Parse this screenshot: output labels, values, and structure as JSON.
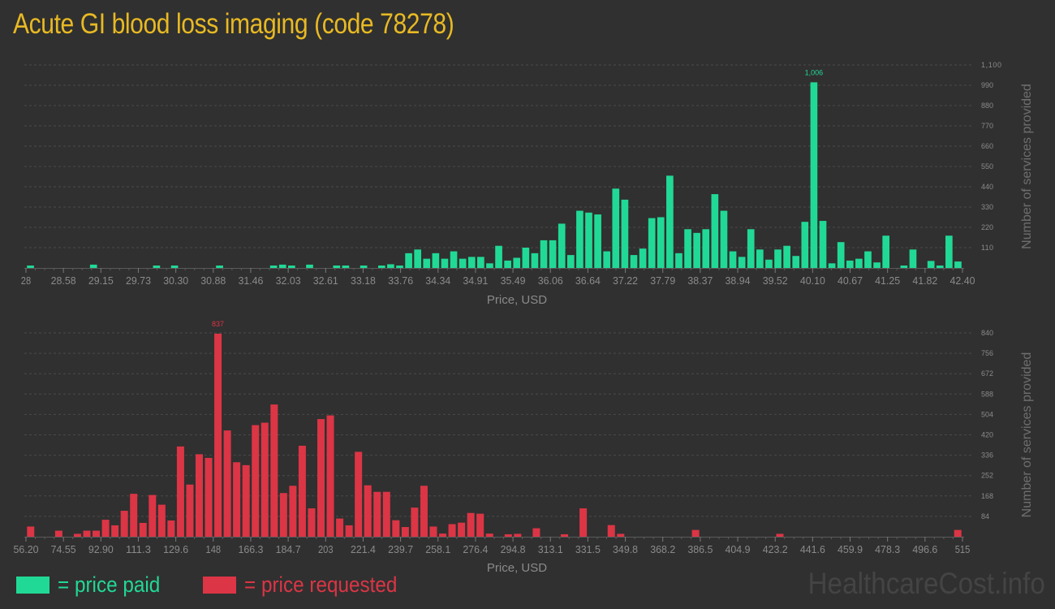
{
  "title": "Acute GI blood loss imaging (code 78278)",
  "colors": {
    "paid": "#21d996",
    "requested": "#dc3545",
    "title": "#e8b923",
    "background": "#303030"
  },
  "legend": {
    "paid_label": "= price paid",
    "requested_label": "= price requested"
  },
  "watermark": "HealthcareCost.info",
  "chart_data": [
    {
      "type": "bar",
      "title": "Price paid",
      "xlabel": "Price, USD",
      "ylabel": "Number of services provided",
      "ylim": [
        0,
        1100
      ],
      "yticks": [
        110,
        220,
        330,
        440,
        550,
        660,
        770,
        880,
        990,
        1100
      ],
      "ytick_labels": [
        "110",
        "220",
        "330",
        "440",
        "550",
        "660",
        "770",
        "880",
        "990",
        "1,100"
      ],
      "xtick_labels": [
        "28",
        "28.58",
        "29.15",
        "29.73",
        "30.30",
        "30.88",
        "31.46",
        "32.03",
        "32.61",
        "33.18",
        "33.76",
        "34.34",
        "34.91",
        "35.49",
        "36.06",
        "36.64",
        "37.22",
        "37.79",
        "38.37",
        "38.94",
        "39.52",
        "40.10",
        "40.67",
        "41.25",
        "41.82",
        "42.40"
      ],
      "grid": true,
      "peak_label": "1,006",
      "color": "#21d996",
      "values": [
        12,
        0,
        0,
        0,
        0,
        0,
        0,
        18,
        0,
        0,
        0,
        0,
        0,
        0,
        10,
        0,
        10,
        0,
        0,
        0,
        0,
        10,
        0,
        0,
        0,
        0,
        0,
        10,
        18,
        10,
        0,
        18,
        0,
        0,
        10,
        8,
        0,
        10,
        0,
        10,
        20,
        8,
        80,
        100,
        50,
        80,
        50,
        90,
        50,
        60,
        60,
        25,
        120,
        40,
        55,
        110,
        80,
        150,
        150,
        240,
        70,
        310,
        300,
        290,
        90,
        430,
        370,
        70,
        105,
        270,
        275,
        500,
        80,
        210,
        190,
        210,
        400,
        310,
        90,
        60,
        210,
        100,
        45,
        100,
        120,
        65,
        250,
        1006,
        255,
        25,
        140,
        40,
        50,
        90,
        30,
        175,
        0,
        8,
        100,
        0,
        38,
        10,
        175,
        35
      ],
      "x_range": [
        28,
        42.4
      ]
    },
    {
      "type": "bar",
      "title": "Price requested",
      "xlabel": "Price, USD",
      "ylabel": "Number of services provided",
      "ylim": [
        0,
        840
      ],
      "yticks": [
        84,
        168,
        252,
        336,
        420,
        504,
        588,
        672,
        756,
        840
      ],
      "ytick_labels": [
        "84",
        "168",
        "252",
        "336",
        "420",
        "504",
        "588",
        "672",
        "756",
        "840"
      ],
      "xtick_labels": [
        "56.20",
        "74.55",
        "92.90",
        "111.3",
        "129.6",
        "148",
        "166.3",
        "184.7",
        "203",
        "221.4",
        "239.7",
        "258.1",
        "276.4",
        "294.8",
        "313.1",
        "331.5",
        "349.8",
        "368.2",
        "386.5",
        "404.9",
        "423.2",
        "441.6",
        "459.9",
        "478.3",
        "496.6",
        "515"
      ],
      "grid": true,
      "peak_label": "837",
      "color": "#dc3545",
      "values": [
        42,
        0,
        0,
        25,
        0,
        12,
        25,
        25,
        70,
        47,
        107,
        177,
        57,
        172,
        132,
        67,
        372,
        215,
        340,
        325,
        837,
        438,
        307,
        295,
        460,
        470,
        545,
        180,
        210,
        375,
        117,
        485,
        500,
        75,
        47,
        350,
        212,
        185,
        185,
        68,
        40,
        120,
        210,
        42,
        13,
        52,
        58,
        98,
        95,
        13,
        0,
        8,
        12,
        0,
        35,
        0,
        0,
        8,
        0,
        117,
        0,
        0,
        48,
        12,
        0,
        0,
        0,
        0,
        0,
        0,
        0,
        28,
        0,
        0,
        0,
        0,
        0,
        0,
        0,
        0,
        12,
        0,
        0,
        0,
        0,
        0,
        0,
        0,
        0,
        0,
        0,
        0,
        0,
        0,
        0,
        0,
        0,
        0,
        0,
        28
      ],
      "x_range": [
        56.2,
        515
      ]
    }
  ]
}
